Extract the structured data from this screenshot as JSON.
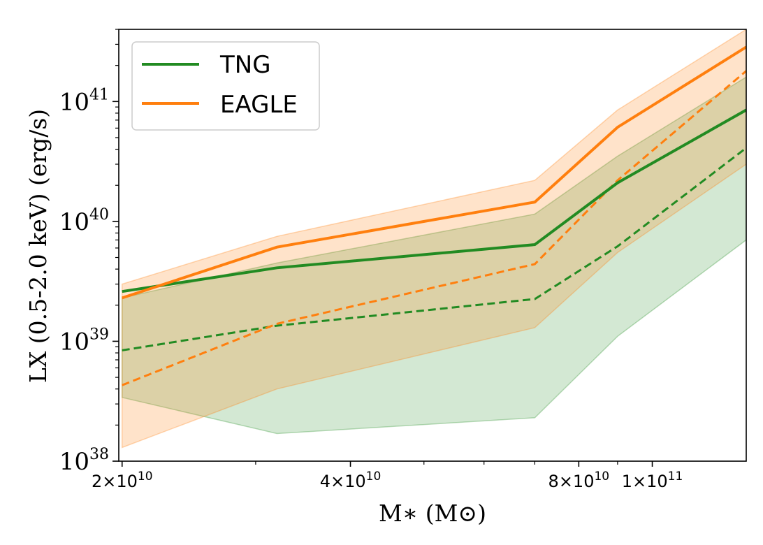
{
  "chart_data": {
    "type": "line",
    "xlabel": "M∗ (M⊙)",
    "ylabel": "LX (0.5-2.0 keV) (erg/s)",
    "xscale": "log",
    "yscale": "log",
    "xlim": [
      19800000000,
      133000000000
    ],
    "ylim": [
      1e+38,
      4e+41
    ],
    "xticks": [
      {
        "value": 20000000000,
        "label": "2×10",
        "exp": "10"
      },
      {
        "value": 40000000000,
        "label": "4×10",
        "exp": "10"
      },
      {
        "value": 80000000000,
        "label": "8×10",
        "exp": "10"
      },
      {
        "value": 100000000000,
        "label": "1×10",
        "exp": "11"
      }
    ],
    "xminor": [
      30000000000,
      50000000000,
      60000000000,
      70000000000,
      90000000000
    ],
    "yticks": [
      {
        "value": 1e+38,
        "label": "10",
        "exp": "38"
      },
      {
        "value": 1e+39,
        "label": "10",
        "exp": "39"
      },
      {
        "value": 1e+40,
        "label": "10",
        "exp": "40"
      },
      {
        "value": 1e+41,
        "label": "10",
        "exp": "41"
      }
    ],
    "x": [
      20000000000,
      32000000000,
      70000000000,
      90000000000,
      133000000000
    ],
    "series": [
      {
        "name": "TNG",
        "color": "#228b22",
        "median": [
          2.6e+39,
          4.1e+39,
          6.4e+39,
          2.1e+40,
          8.5e+40
        ],
        "median_alt": [
          8.4e+38,
          1.35e+39,
          2.25e+39,
          6.2e+39,
          4.1e+40
        ],
        "band_low": [
          3.4e+38,
          1.7e+38,
          2.3e+38,
          1.1e+39,
          7e+39
        ],
        "band_high": [
          2.3e+39,
          4.5e+39,
          1.15e+40,
          3.5e+40,
          1.6e+41
        ]
      },
      {
        "name": "EAGLE",
        "color": "#ff7f0e",
        "median": [
          2.3e+39,
          6.1e+39,
          1.45e+40,
          6.1e+40,
          2.85e+41
        ],
        "median_alt": [
          4.3e+38,
          1.4e+39,
          4.4e+39,
          2.2e+40,
          1.8e+41
        ],
        "band_low": [
          1.3e+38,
          4e+38,
          1.3e+39,
          5.5e+39,
          3e+40
        ],
        "band_high": [
          3e+39,
          7.5e+39,
          2.2e+40,
          8.5e+40,
          4e+41
        ]
      }
    ],
    "legend": {
      "placement": "top-left"
    },
    "grid": false
  }
}
